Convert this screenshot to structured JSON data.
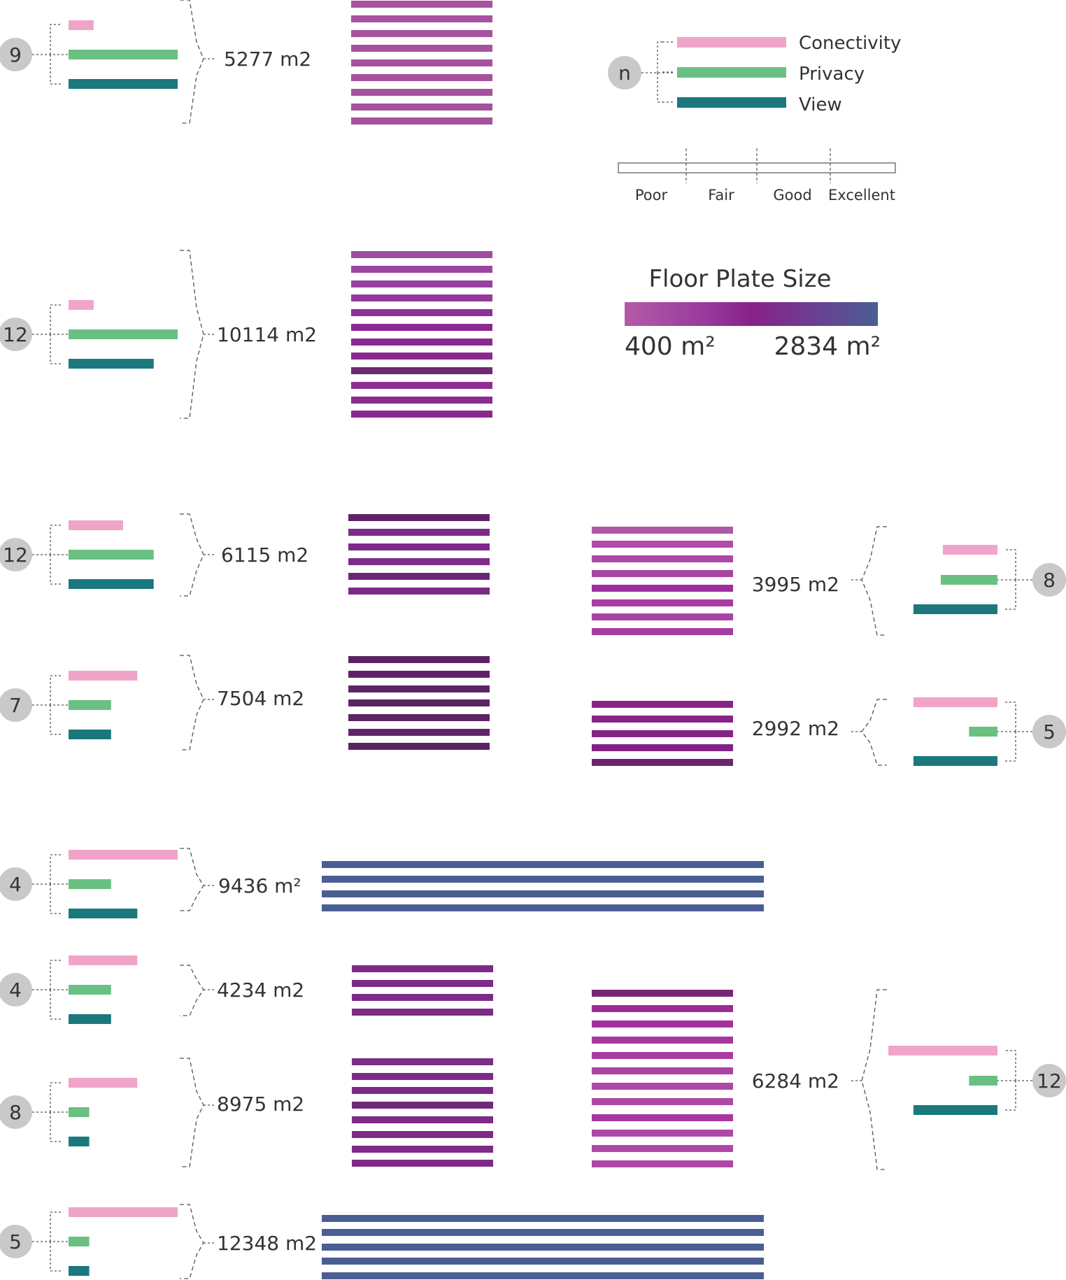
{
  "legend": {
    "symbol": "n",
    "metrics": [
      {
        "label": "Conectivity",
        "color": "#f0a5c8"
      },
      {
        "label": "Privacy",
        "color": "#69c080"
      },
      {
        "label": "View",
        "color": "#1b787d"
      }
    ],
    "rating_scale": [
      "Poor",
      "Fair",
      "Good",
      "Excellent"
    ],
    "floor_plate": {
      "title": "Floor Plate Size",
      "min_label": "400 m²",
      "max_label": "2834 m²",
      "gradient_colors": [
        "#b35aa8",
        "#9a3c9e",
        "#882288",
        "#6b3f92",
        "#4a5e92"
      ]
    }
  },
  "buildings": [
    {
      "floors": "9",
      "area": "5277 m2",
      "metrics": {
        "connectivity": 0.23,
        "privacy": 1.0,
        "view": 1.0
      }
    },
    {
      "floors": "12",
      "area": "10114 m2",
      "metrics": {
        "connectivity": 0.23,
        "privacy": 1.0,
        "view": 0.78
      }
    },
    {
      "floors": "12",
      "area": "6115 m2",
      "metrics": {
        "connectivity": 0.5,
        "privacy": 0.78,
        "view": 0.78
      }
    },
    {
      "floors": "7",
      "area": "7504 m2",
      "metrics": {
        "connectivity": 0.63,
        "privacy": 0.39,
        "view": 0.39
      }
    },
    {
      "floors": "8",
      "area": "3995 m2",
      "metrics": {
        "connectivity": 0.5,
        "privacy": 0.52,
        "view": 0.77
      }
    },
    {
      "floors": "5",
      "area": "2992 m2",
      "metrics": {
        "connectivity": 0.77,
        "privacy": 0.26,
        "view": 0.77
      }
    },
    {
      "floors": "4",
      "area": "9436 m²",
      "metrics": {
        "connectivity": 1.0,
        "privacy": 0.39,
        "view": 0.63
      }
    },
    {
      "floors": "4",
      "area": "4234 m2",
      "metrics": {
        "connectivity": 0.63,
        "privacy": 0.39,
        "view": 0.39
      }
    },
    {
      "floors": "8",
      "area": "8975 m2",
      "metrics": {
        "connectivity": 0.63,
        "privacy": 0.19,
        "view": 0.19
      }
    },
    {
      "floors": "12",
      "area": "6284 m2",
      "metrics": {
        "connectivity": 1.0,
        "privacy": 0.26,
        "view": 0.77
      }
    },
    {
      "floors": "5",
      "area": "12348 m2",
      "metrics": {
        "connectivity": 1.0,
        "privacy": 0.19,
        "view": 0.19
      }
    }
  ]
}
